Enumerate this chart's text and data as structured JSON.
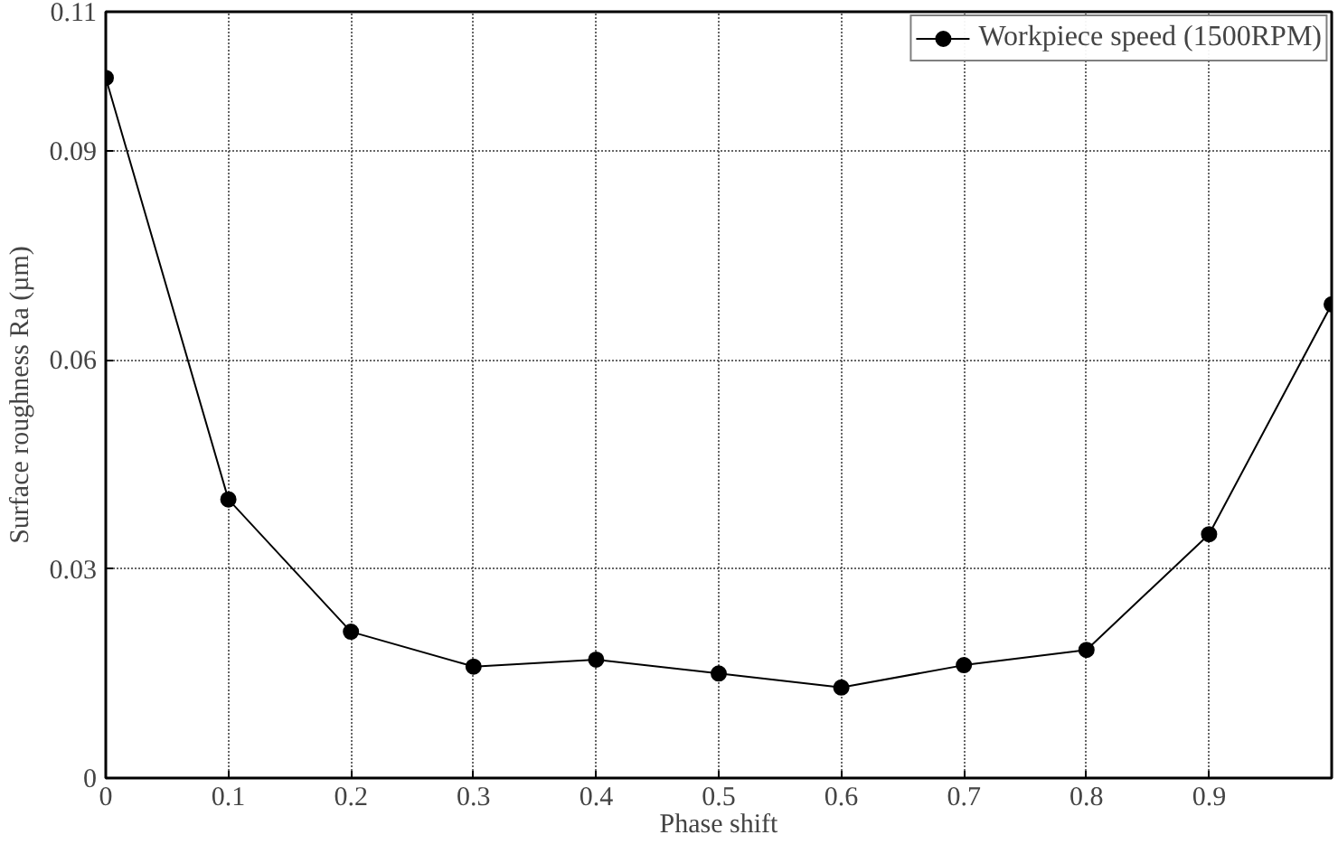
{
  "chart_data": {
    "type": "line",
    "xlabel": "Phase shift",
    "ylabel": "Surface roughness Ra (µm)",
    "x": [
      0,
      0.1,
      0.2,
      0.3,
      0.4,
      0.5,
      0.6,
      0.7,
      0.8,
      0.9,
      1.0
    ],
    "series": [
      {
        "name": "Workpiece speed (1500RPM)",
        "color": "#000000",
        "values": [
          0.1005,
          0.04,
          0.021,
          0.016,
          0.017,
          0.015,
          0.013,
          0.0162,
          0.0184,
          0.035,
          0.068
        ]
      }
    ],
    "xlim": [
      0,
      1
    ],
    "ylim": [
      0,
      0.11
    ],
    "xticks": [
      0,
      0.1,
      0.2,
      0.3,
      0.4,
      0.5,
      0.6,
      0.7,
      0.8,
      0.9
    ],
    "yticks": [
      0,
      0.03,
      0.06,
      0.09,
      0.11
    ],
    "grid": true,
    "legend": "top right",
    "marker": "circle",
    "line_style": "solid"
  }
}
